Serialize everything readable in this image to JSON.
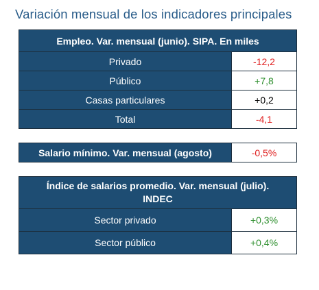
{
  "page": {
    "title": "Variación mensual de los indicadores principales"
  },
  "employment": {
    "header": "Empleo. Var. mensual (junio). SIPA. En miles",
    "rows": [
      {
        "label": "Privado",
        "value": "-12,2",
        "color": "#e02020"
      },
      {
        "label": "Público",
        "value": "+7,8",
        "color": "#2e8f2e"
      },
      {
        "label": "Casas particulares",
        "value": "+0,2",
        "color": "#000000"
      },
      {
        "label": "Total",
        "value": "-4,1",
        "color": "#e02020"
      }
    ]
  },
  "minimum_wage": {
    "label": "Salario mínimo. Var. mensual (agosto)",
    "value": "-0,5%",
    "color": "#e02020"
  },
  "wage_index": {
    "header": "Índice de salarios promedio.  Var. mensual (julio). INDEC",
    "rows": [
      {
        "label": "Sector privado",
        "value": "+0,3%",
        "color": "#2e8f2e"
      },
      {
        "label": "Sector público",
        "value": "+0,4%",
        "color": "#2e8f2e"
      }
    ]
  },
  "colors": {
    "header_bg": "#1e4d73",
    "title_text": "#2a5d8a",
    "negative": "#e02020",
    "positive": "#2e8f2e"
  }
}
